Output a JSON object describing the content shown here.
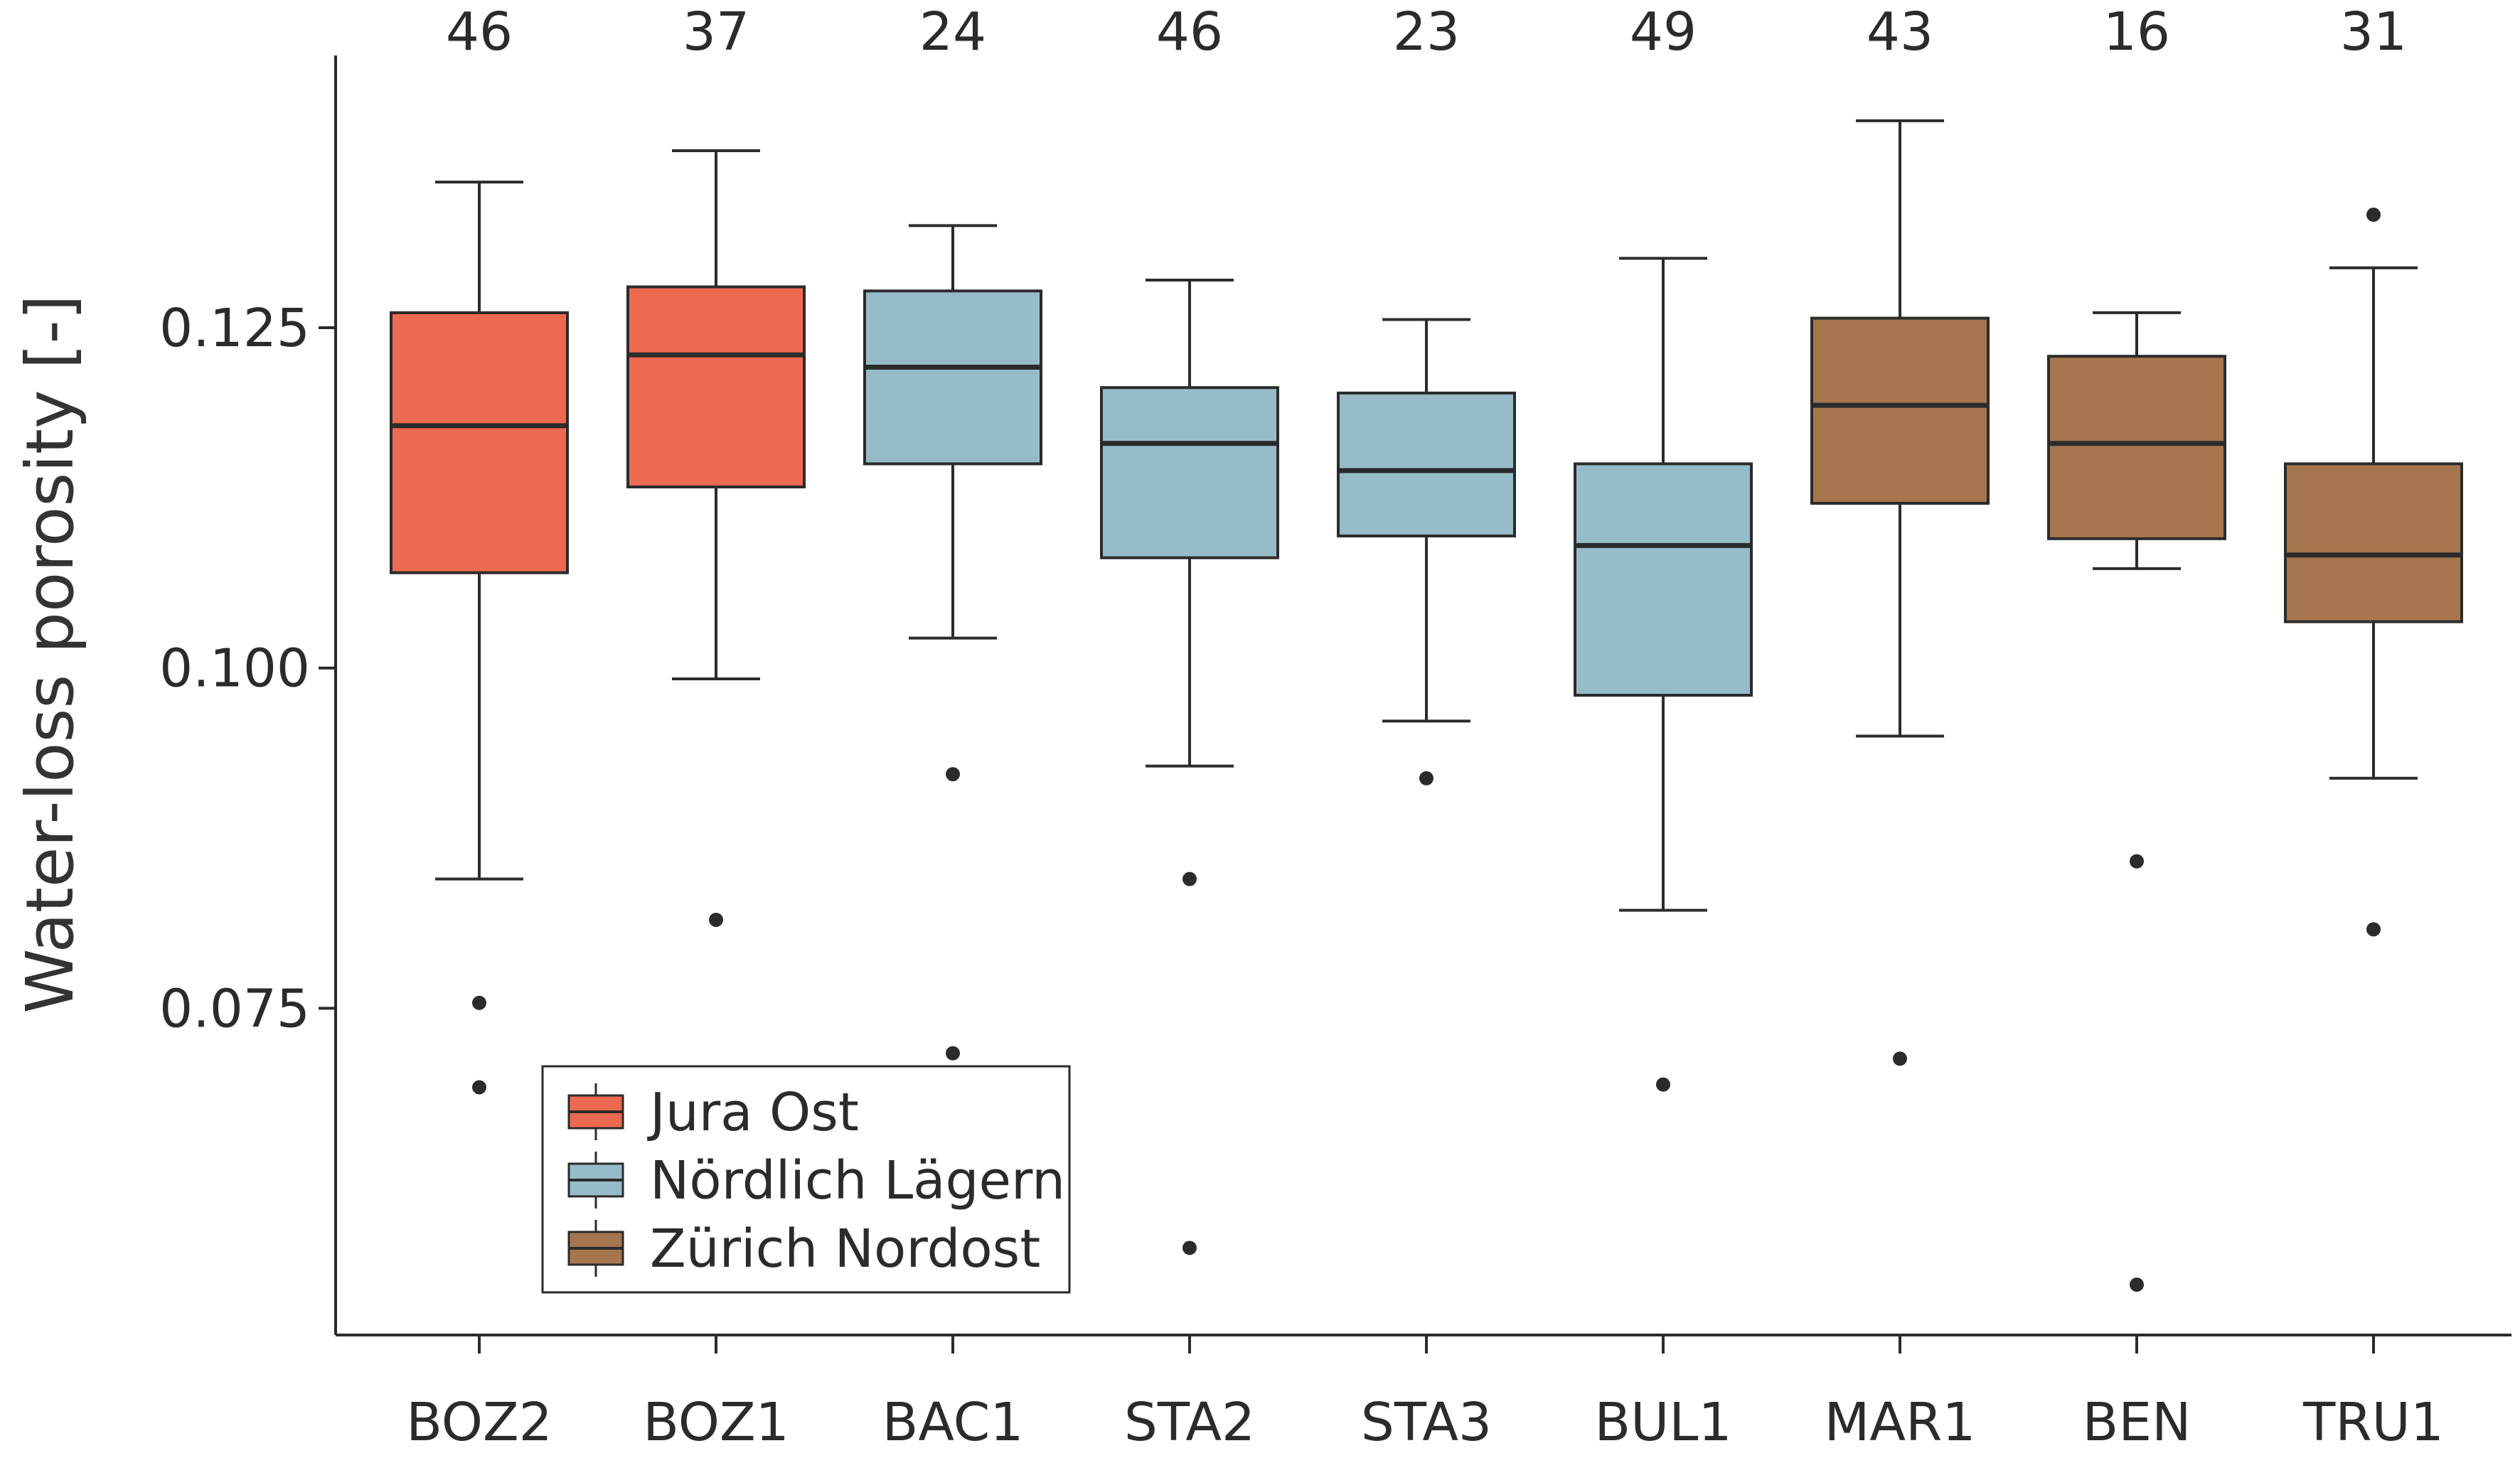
{
  "chart_data": {
    "type": "boxplot",
    "title": "",
    "xlabel": "",
    "ylabel": "Water-loss porosity [-]",
    "ylim": [
      0.051,
      0.145
    ],
    "yticks": [
      "0.075",
      "0.100",
      "0.125"
    ],
    "categories": [
      "BOZ2",
      "BOZ1",
      "BAC1",
      "STA2",
      "STA3",
      "BUL1",
      "MAR1",
      "BEN",
      "TRU1"
    ],
    "counts": [
      "46",
      "37",
      "24",
      "46",
      "23",
      "49",
      "43",
      "16",
      "31"
    ],
    "colors": {
      "Jura Ost": "#ec6a50",
      "Nördlich Lägern": "#97bcc9",
      "Zürich Nordost": "#a6764f"
    },
    "legend": {
      "placement": "lower-left",
      "entries": [
        "Jura Ost",
        "Nördlich Lägern",
        "Zürich Nordost"
      ]
    },
    "boxes": [
      {
        "label": "BOZ2",
        "group": "Jura Ost",
        "whisker_low": 0.0845,
        "q1": 0.107,
        "median": 0.1178,
        "q3": 0.1261,
        "whisker_high": 0.1357,
        "outliers": [
          0.0754,
          0.0692
        ]
      },
      {
        "label": "BOZ1",
        "group": "Jura Ost",
        "whisker_low": 0.0992,
        "q1": 0.1133,
        "median": 0.123,
        "q3": 0.128,
        "whisker_high": 0.138,
        "outliers": [
          0.0815
        ]
      },
      {
        "label": "BAC1",
        "group": "Nördlich Lägern",
        "whisker_low": 0.1022,
        "q1": 0.115,
        "median": 0.1221,
        "q3": 0.1277,
        "whisker_high": 0.1325,
        "outliers": [
          0.0922,
          0.0717
        ]
      },
      {
        "label": "STA2",
        "group": "Nördlich Lägern",
        "whisker_low": 0.0928,
        "q1": 0.1081,
        "median": 0.1165,
        "q3": 0.1206,
        "whisker_high": 0.1285,
        "outliers": [
          0.0845,
          0.0574
        ]
      },
      {
        "label": "STA3",
        "group": "Nördlich Lägern",
        "whisker_low": 0.0961,
        "q1": 0.1097,
        "median": 0.1145,
        "q3": 0.1202,
        "whisker_high": 0.1256,
        "outliers": [
          0.0919
        ]
      },
      {
        "label": "BUL1",
        "group": "Nördlich Lägern",
        "whisker_low": 0.0822,
        "q1": 0.098,
        "median": 0.109,
        "q3": 0.115,
        "whisker_high": 0.1301,
        "outliers": [
          0.0694
        ]
      },
      {
        "label": "MAR1",
        "group": "Zürich Nordost",
        "whisker_low": 0.095,
        "q1": 0.1121,
        "median": 0.1193,
        "q3": 0.1257,
        "whisker_high": 0.1402,
        "outliers": [
          0.0713
        ]
      },
      {
        "label": "BEN",
        "group": "Zürich Nordost",
        "whisker_low": 0.1073,
        "q1": 0.1095,
        "median": 0.1165,
        "q3": 0.1229,
        "whisker_high": 0.1261,
        "outliers": [
          0.0858,
          0.0547
        ]
      },
      {
        "label": "TRU1",
        "group": "Zürich Nordost",
        "whisker_low": 0.0919,
        "q1": 0.1034,
        "median": 0.1083,
        "q3": 0.115,
        "whisker_high": 0.1294,
        "outliers": [
          0.1333,
          0.0808
        ]
      }
    ]
  }
}
